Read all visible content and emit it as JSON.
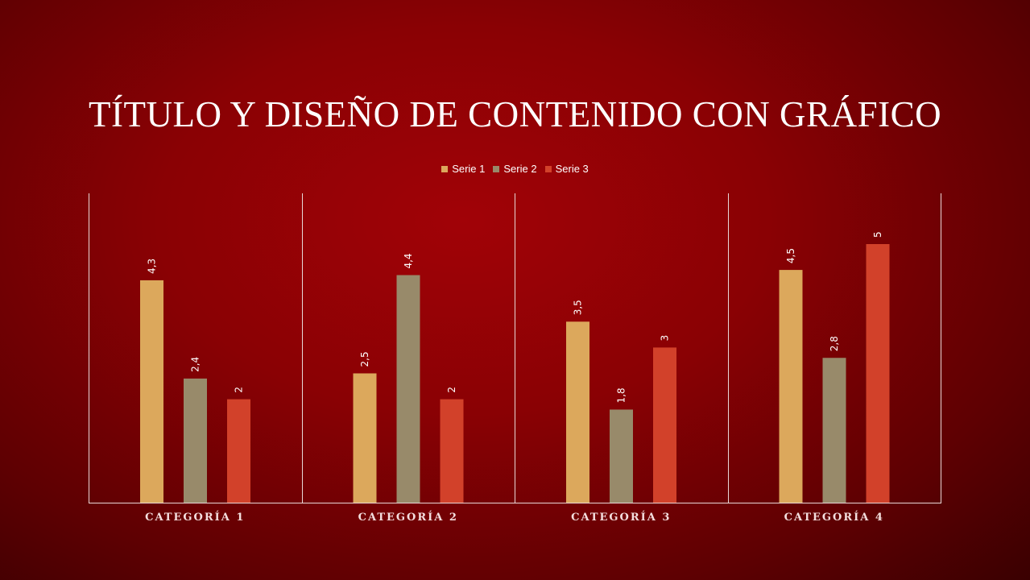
{
  "slide": {
    "title": "TÍTULO Y DISEÑO DE CONTENIDO CON GRÁFICO"
  },
  "colors": {
    "serie1": "#dca85c",
    "serie2": "#988a6a",
    "serie3": "#d2412a",
    "axis": "#e8d8d8"
  },
  "chart_data": {
    "type": "bar",
    "title": "",
    "xlabel": "",
    "ylabel": "",
    "ylim": [
      0,
      6
    ],
    "grid": false,
    "legend_position": "top",
    "categories": [
      "CATEGORÍA 1",
      "CATEGORÍA 2",
      "CATEGORÍA 3",
      "CATEGORÍA 4"
    ],
    "series": [
      {
        "name": "Serie 1",
        "values": [
          4.3,
          2.5,
          3.5,
          4.5
        ],
        "labels": [
          "4,3",
          "2,5",
          "3,5",
          "4,5"
        ],
        "color": "#dca85c"
      },
      {
        "name": "Serie 2",
        "values": [
          2.4,
          4.4,
          1.8,
          2.8
        ],
        "labels": [
          "2,4",
          "4,4",
          "1,8",
          "2,8"
        ],
        "color": "#988a6a"
      },
      {
        "name": "Serie 3",
        "values": [
          2,
          2,
          3,
          5
        ],
        "labels": [
          "2",
          "2",
          "3",
          "5"
        ],
        "color": "#d2412a"
      }
    ]
  }
}
